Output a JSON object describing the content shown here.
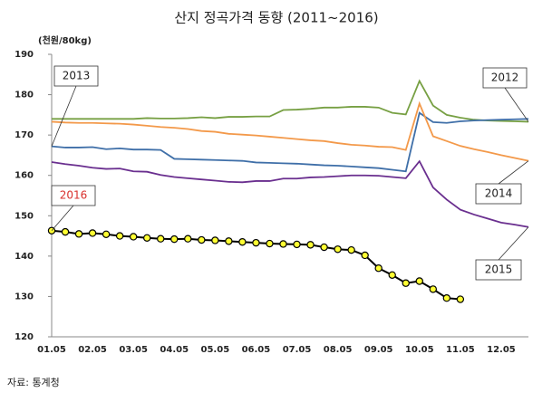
{
  "chart_data": {
    "type": "line",
    "title": "산지 정곡가격 동향 (2011~2016)",
    "y_unit": "(천원/80kg)",
    "source": "자료: 통계청",
    "categories": [
      "01.05",
      null,
      null,
      "02.05",
      null,
      null,
      "03.05",
      null,
      null,
      "04.05",
      null,
      null,
      "05.05",
      null,
      null,
      "06.05",
      null,
      null,
      "07.05",
      null,
      null,
      "08.05",
      null,
      null,
      "09.05",
      null,
      null,
      "10.05",
      null,
      null,
      "11.05",
      null,
      null,
      "12.05",
      null,
      null
    ],
    "ylim": [
      120,
      190
    ],
    "yticks": [
      120,
      130,
      140,
      150,
      160,
      170,
      180,
      190
    ],
    "grid": false,
    "series": [
      {
        "name": "2012",
        "color": "#77a043",
        "values": [
          174,
          174,
          174,
          174,
          174,
          174,
          174,
          174.2,
          174.1,
          174.1,
          174.2,
          174.4,
          174.2,
          174.5,
          174.5,
          174.6,
          174.6,
          176.2,
          176.3,
          176.5,
          176.8,
          176.8,
          177,
          177,
          176.8,
          175.5,
          175.1,
          183.4,
          177.3,
          175,
          174.3,
          173.8,
          173.6,
          173.5,
          173.4,
          173.3
        ]
      },
      {
        "name": "2013",
        "color": "#3f6fa8",
        "values": [
          167.2,
          166.9,
          166.9,
          167,
          166.5,
          166.7,
          166.4,
          166.4,
          166.3,
          164.1,
          164,
          163.9,
          163.8,
          163.7,
          163.6,
          163.2,
          163.1,
          163,
          162.9,
          162.7,
          162.5,
          162.4,
          162.2,
          162,
          161.8,
          161.4,
          161,
          175.5,
          173.2,
          173,
          173.4,
          173.6,
          173.7,
          173.8,
          173.9,
          174
        ]
      },
      {
        "name": "2014",
        "color": "#f3994a",
        "values": [
          173.3,
          173.1,
          173,
          173,
          172.9,
          172.8,
          172.6,
          172.3,
          172,
          171.8,
          171.5,
          171,
          170.8,
          170.3,
          170.1,
          169.9,
          169.6,
          169.3,
          169,
          168.7,
          168.5,
          168,
          167.6,
          167.4,
          167.1,
          167,
          166.3,
          177.8,
          169.7,
          168.5,
          167.3,
          166.5,
          165.8,
          165,
          164.3,
          163.6
        ]
      },
      {
        "name": "2015",
        "color": "#6a2f8f",
        "values": [
          163.3,
          162.8,
          162.4,
          161.9,
          161.6,
          161.7,
          161,
          160.9,
          160.1,
          159.6,
          159.3,
          159,
          158.7,
          158.4,
          158.3,
          158.6,
          158.6,
          159.2,
          159.2,
          159.5,
          159.6,
          159.8,
          160,
          160,
          159.9,
          159.6,
          159.3,
          163.5,
          157,
          154,
          151.5,
          150.3,
          149.3,
          148.3,
          147.8,
          147.2
        ]
      },
      {
        "name": "2016",
        "color": "#000000",
        "marker_color": "#ffff33",
        "values": [
          146.3,
          146,
          145.5,
          145.7,
          145.4,
          145,
          144.8,
          144.5,
          144.3,
          144.2,
          144.3,
          144,
          143.9,
          143.7,
          143.5,
          143.3,
          143.1,
          143,
          142.9,
          142.8,
          142.2,
          141.7,
          141.5,
          140.2,
          137,
          135.3,
          133.3,
          133.8,
          131.8,
          129.6,
          129.3,
          null,
          null,
          null,
          null,
          null
        ]
      }
    ]
  }
}
